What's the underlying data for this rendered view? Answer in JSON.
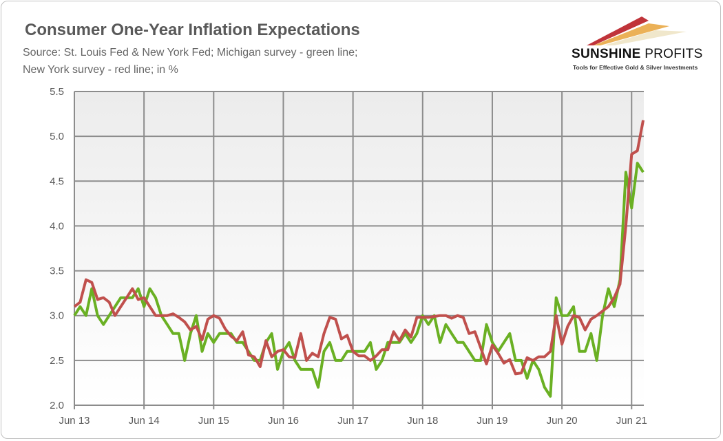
{
  "header": {
    "title": "Consumer One-Year Inflation Expectations",
    "subtitle_line1": "Source: St. Louis Fed & New York Fed; Michigan survey - green line;",
    "subtitle_line2": "New York survey - red line; in %"
  },
  "logo": {
    "brand_bold": "SUNSHINE",
    "brand_light": "PROFITS",
    "tagline": "Tools for Effective Gold & Silver Investments"
  },
  "chart_data": {
    "type": "line",
    "title": "Consumer One-Year Inflation Expectations",
    "xlabel": "",
    "ylabel": "",
    "ylim": [
      2.0,
      5.5
    ],
    "yticks": [
      "2.0",
      "2.5",
      "3.0",
      "3.5",
      "4.0",
      "4.5",
      "5.0",
      "5.5"
    ],
    "xticks": [
      "Jun 13",
      "Jun 14",
      "Jun 15",
      "Jun 16",
      "Jun 17",
      "Jun 18",
      "Jun 19",
      "Jun 20",
      "Jun 21"
    ],
    "x_start": "Jun 2013",
    "x_end": "Aug 2021",
    "frequency": "monthly",
    "grid": true,
    "series": [
      {
        "name": "Michigan survey",
        "color": "#6ab023",
        "values": [
          3.0,
          3.1,
          3.0,
          3.3,
          3.0,
          2.9,
          3.0,
          3.1,
          3.2,
          3.2,
          3.2,
          3.3,
          3.1,
          3.3,
          3.2,
          3.0,
          2.9,
          2.8,
          2.8,
          2.5,
          2.8,
          3.0,
          2.6,
          2.8,
          2.7,
          2.8,
          2.8,
          2.8,
          2.7,
          2.7,
          2.6,
          2.5,
          2.5,
          2.7,
          2.8,
          2.4,
          2.6,
          2.7,
          2.5,
          2.4,
          2.4,
          2.4,
          2.2,
          2.6,
          2.7,
          2.5,
          2.5,
          2.6,
          2.6,
          2.6,
          2.6,
          2.7,
          2.4,
          2.5,
          2.7,
          2.7,
          2.7,
          2.8,
          2.7,
          2.8,
          3.0,
          2.9,
          3.0,
          2.7,
          2.9,
          2.8,
          2.7,
          2.7,
          2.6,
          2.5,
          2.5,
          2.9,
          2.7,
          2.6,
          2.7,
          2.8,
          2.5,
          2.5,
          2.3,
          2.5,
          2.4,
          2.2,
          2.1,
          3.2,
          3.0,
          3.0,
          3.1,
          2.6,
          2.6,
          2.8,
          2.5,
          3.0,
          3.3,
          3.1,
          3.4,
          4.6,
          4.2,
          4.7,
          4.6
        ]
      },
      {
        "name": "New York survey",
        "color": "#c0504d",
        "values": [
          3.1,
          3.15,
          3.4,
          3.37,
          3.18,
          3.2,
          3.15,
          3.0,
          3.1,
          3.2,
          3.3,
          3.18,
          3.2,
          3.1,
          3.0,
          3.0,
          3.0,
          3.02,
          2.98,
          2.93,
          2.84,
          2.88,
          2.73,
          2.96,
          3.0,
          2.97,
          2.85,
          2.77,
          2.72,
          2.82,
          2.56,
          2.54,
          2.43,
          2.72,
          2.54,
          2.6,
          2.62,
          2.54,
          2.53,
          2.8,
          2.5,
          2.58,
          2.54,
          2.8,
          2.98,
          2.96,
          2.74,
          2.78,
          2.6,
          2.55,
          2.55,
          2.5,
          2.55,
          2.62,
          2.62,
          2.82,
          2.72,
          2.84,
          2.76,
          2.98,
          2.98,
          2.98,
          2.99,
          3.0,
          3.0,
          2.97,
          3.0,
          2.98,
          2.8,
          2.82,
          2.64,
          2.46,
          2.67,
          2.58,
          2.47,
          2.51,
          2.35,
          2.36,
          2.53,
          2.5,
          2.54,
          2.54,
          2.6,
          3.0,
          2.68,
          2.88,
          3.0,
          2.98,
          2.84,
          2.96,
          3.0,
          3.05,
          3.1,
          3.2,
          3.35,
          4.0,
          4.8,
          4.84,
          5.18
        ]
      }
    ]
  }
}
